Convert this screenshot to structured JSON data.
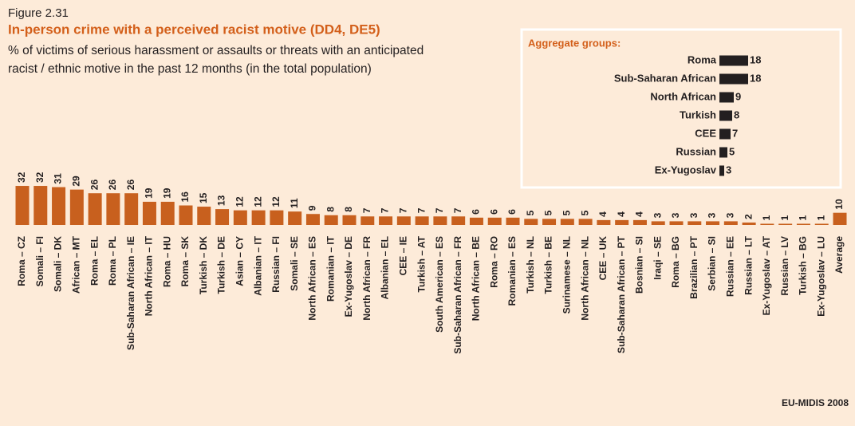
{
  "figure_label": "Figure 2.31",
  "source": "EU-MIDIS 2008",
  "chart_data": [
    {
      "type": "bar",
      "title": "In-person crime with a perceived racist motive (DD4, DE5)",
      "subtitle": [
        "% of victims of serious harassment or assaults or threats with an anticipated",
        "racist / ethnic motive in the past 12 months (in the total population)"
      ],
      "color": "#c8601e",
      "categories": [
        "Roma – CZ",
        "Somali – FI",
        "Somali – DK",
        "African – MT",
        "Roma – EL",
        "Roma – PL",
        "Sub-Saharan African – IE",
        "North African – IT",
        "Roma – HU",
        "Roma – SK",
        "Turkish – DK",
        "Turkish – DE",
        "Asian – CY",
        "Albanian – IT",
        "Russian – FI",
        "Somali – SE",
        "North African – ES",
        "Romanian – IT",
        "Ex-Yugoslav – DE",
        "North African – FR",
        "Albanian – EL",
        "CEE – IE",
        "Turkish – AT",
        "South American – ES",
        "Sub-Saharan African – FR",
        "North African – BE",
        "Roma – RO",
        "Romanian – ES",
        "Turkish – NL",
        "Turkish – BE",
        "Surinamese – NL",
        "North African – NL",
        "CEE – UK",
        "Sub-Saharan African – PT",
        "Bosnian – SI",
        "Iraqi – SE",
        "Roma – BG",
        "Brazilian – PT",
        "Serbian – SI",
        "Russian – EE",
        "Russian – LT",
        "Ex-Yugoslav – AT",
        "Russian – LV",
        "Turkish – BG",
        "Ex-Yugoslav – LU",
        "Average"
      ],
      "values": [
        32,
        32,
        31,
        29,
        26,
        26,
        26,
        19,
        19,
        16,
        15,
        13,
        12,
        12,
        12,
        11,
        9,
        8,
        8,
        7,
        7,
        7,
        7,
        7,
        7,
        6,
        6,
        6,
        5,
        5,
        5,
        5,
        4,
        4,
        4,
        3,
        3,
        3,
        3,
        3,
        2,
        1,
        1,
        1,
        1,
        10
      ]
    },
    {
      "type": "hbar",
      "title": "Aggregate groups:",
      "color": "#231f20",
      "categories": [
        "Roma",
        "Sub-Saharan African",
        "North African",
        "Turkish",
        "CEE",
        "Russian",
        "Ex-Yugoslav"
      ],
      "values": [
        18,
        18,
        9,
        8,
        7,
        5,
        3
      ]
    }
  ]
}
